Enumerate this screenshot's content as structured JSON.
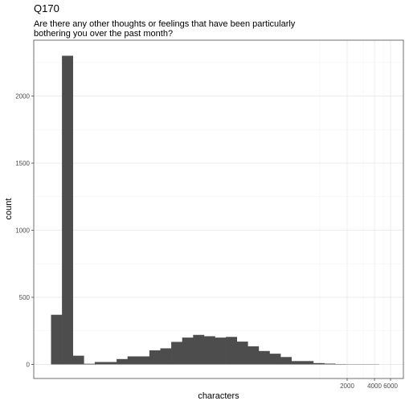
{
  "chart_data": {
    "type": "bar",
    "title": "Q170",
    "subtitle_lines": [
      "Are there any other thoughts or feelings that have been particularly",
      "bothering you over the past month?"
    ],
    "xlabel": "characters",
    "ylabel": "count",
    "ylim": [
      0,
      2480
    ],
    "y_ticks": [
      0,
      500,
      1000,
      1500,
      2000
    ],
    "x_scale": "log",
    "x_ticks": [
      2000,
      4000,
      6000
    ],
    "x_minor_ticks": [
      1000,
      3000,
      5000
    ],
    "grid": true,
    "bar_color": "#4d4d4d",
    "bins": [
      {
        "value": 370
      },
      {
        "value": 2300
      },
      {
        "value": 65
      },
      {
        "value": 5
      },
      {
        "value": 18
      },
      {
        "value": 18
      },
      {
        "value": 40
      },
      {
        "value": 60
      },
      {
        "value": 60
      },
      {
        "value": 105
      },
      {
        "value": 120
      },
      {
        "value": 168
      },
      {
        "value": 200
      },
      {
        "value": 220
      },
      {
        "value": 210
      },
      {
        "value": 200
      },
      {
        "value": 205
      },
      {
        "value": 170
      },
      {
        "value": 135
      },
      {
        "value": 100
      },
      {
        "value": 80
      },
      {
        "value": 55
      },
      {
        "value": 25
      },
      {
        "value": 25
      },
      {
        "value": 10
      },
      {
        "value": 6
      },
      {
        "value": 3
      },
      {
        "value": 2
      },
      {
        "value": 1
      },
      {
        "value": 1
      }
    ]
  }
}
